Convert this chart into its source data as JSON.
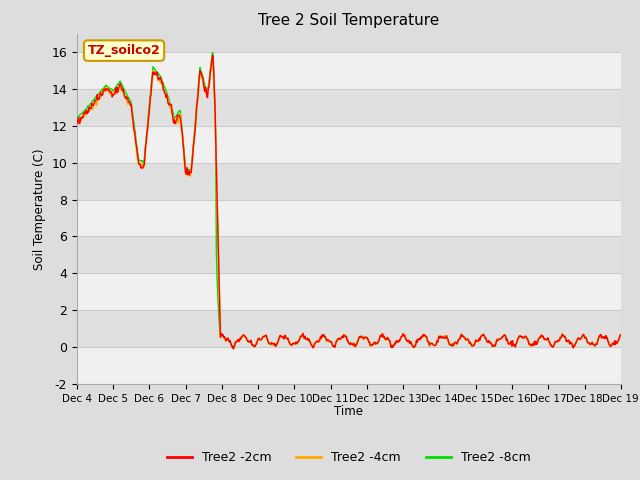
{
  "title": "Tree 2 Soil Temperature",
  "ylabel": "Soil Temperature (C)",
  "xlabel": "Time",
  "ylim": [
    -2,
    17
  ],
  "yticks": [
    -2,
    0,
    2,
    4,
    6,
    8,
    10,
    12,
    14,
    16
  ],
  "annotation_text": "TZ_soilco2",
  "annotation_box_color": "#ffffcc",
  "annotation_text_color": "#cc0000",
  "annotation_border_color": "#cc9900",
  "bg_color": "#dddddd",
  "plot_bg_color": "#ffffff",
  "line_colors": {
    "2cm": "#ff0000",
    "4cm": "#ffaa00",
    "8cm": "#00dd00"
  },
  "legend_labels": [
    "Tree2 -2cm",
    "Tree2 -4cm",
    "Tree2 -8cm"
  ],
  "x_tick_labels": [
    "Dec 4",
    "Dec 5",
    "Dec 6",
    "Dec 7",
    "Dec 8",
    "Dec 9",
    "Dec 10",
    "Dec 11",
    "Dec 12",
    "Dec 13",
    "Dec 14",
    "Dec 15",
    "Dec 16",
    "Dec 17",
    "Dec 18",
    "Dec 19"
  ],
  "grid_color": "#cccccc",
  "band_colors": [
    "#f0f0f0",
    "#e0e0e0"
  ]
}
